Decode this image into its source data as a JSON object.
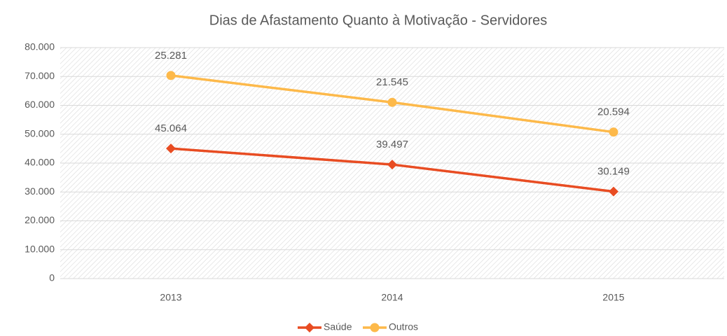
{
  "chart_data": {
    "type": "line",
    "stacked": true,
    "title": "Dias de Afastamento Quanto à Motivação - Servidores",
    "categories": [
      "2013",
      "2014",
      "2015"
    ],
    "series": [
      {
        "name": "Saúde",
        "color": "#e84c22",
        "marker": "diamond",
        "values": [
          45064,
          39497,
          30149
        ],
        "value_labels": [
          "45.064",
          "39.497",
          "30.149"
        ]
      },
      {
        "name": "Outros",
        "color": "#fdb94a",
        "marker": "circle",
        "values": [
          25281,
          21545,
          20594
        ],
        "value_labels": [
          "25.281",
          "21.545",
          "20.594"
        ]
      }
    ],
    "ylim": [
      0,
      80000
    ],
    "yticks": [
      {
        "value": 0,
        "label": "0"
      },
      {
        "value": 10000,
        "label": "10.000"
      },
      {
        "value": 20000,
        "label": "20.000"
      },
      {
        "value": 30000,
        "label": "30.000"
      },
      {
        "value": 40000,
        "label": "40.000"
      },
      {
        "value": 50000,
        "label": "50.000"
      },
      {
        "value": 60000,
        "label": "60.000"
      },
      {
        "value": 70000,
        "label": "70.000"
      },
      {
        "value": 80000,
        "label": "80.000"
      }
    ],
    "grid": true,
    "legend": "bottom"
  }
}
